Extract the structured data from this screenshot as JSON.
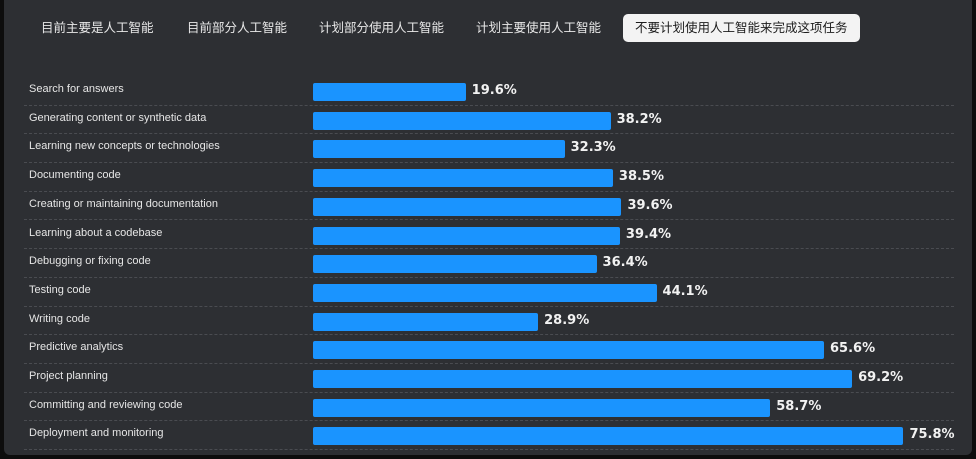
{
  "tabs": [
    {
      "label": "目前主要是人工智能",
      "active": false
    },
    {
      "label": "目前部分人工智能",
      "active": false
    },
    {
      "label": "计划部分使用人工智能",
      "active": false
    },
    {
      "label": "计划主要使用人工智能",
      "active": false
    },
    {
      "label": "不要计划使用人工智能来完成这项任务",
      "active": true
    }
  ],
  "colors": {
    "bar": "#1a94ff",
    "panel_background": "#2d2f33",
    "active_tab_background": "#f3f3f3"
  },
  "chart_data": {
    "type": "bar",
    "orientation": "horizontal",
    "categories": [
      "Search for answers",
      "Generating content or synthetic data",
      "Learning new concepts or technologies",
      "Documenting code",
      "Creating or maintaining documentation",
      "Learning about a codebase",
      "Debugging or fixing code",
      "Testing code",
      "Writing code",
      "Predictive analytics",
      "Project planning",
      "Committing and reviewing code",
      "Deployment and monitoring"
    ],
    "values": [
      19.6,
      38.2,
      32.3,
      38.5,
      39.6,
      39.4,
      36.4,
      44.1,
      28.9,
      65.6,
      69.2,
      58.7,
      75.8
    ],
    "value_labels": [
      "19.6%",
      "38.2%",
      "32.3%",
      "38.5%",
      "39.6%",
      "39.4%",
      "36.4%",
      "44.1%",
      "28.9%",
      "65.6%",
      "69.2%",
      "58.7%",
      "75.8%"
    ],
    "unit": "%",
    "xlim": [
      0,
      100
    ],
    "grid": false
  }
}
